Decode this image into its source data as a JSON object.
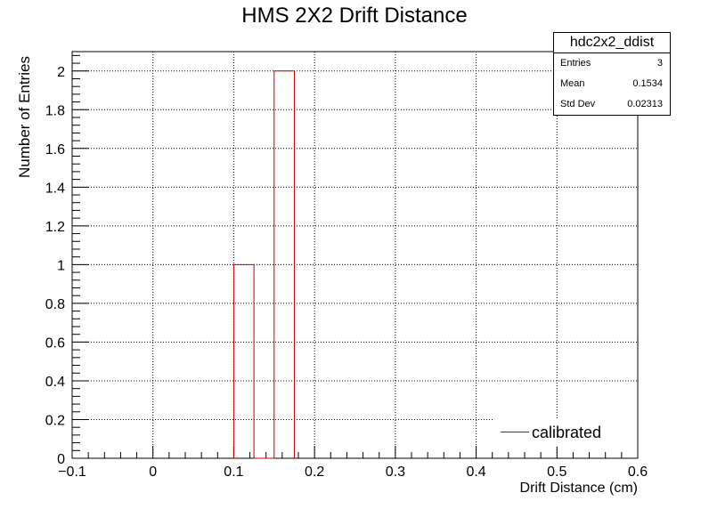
{
  "chart_data": {
    "type": "bar",
    "title": "HMS 2X2 Drift Distance",
    "xlabel": "Drift Distance (cm)",
    "ylabel": "Number of Entries",
    "xlim": [
      -0.1,
      0.6
    ],
    "ylim": [
      0,
      2.1
    ],
    "x_ticks": [
      "−0.1",
      "0",
      "0.1",
      "0.2",
      "0.3",
      "0.4",
      "0.5",
      "0.6"
    ],
    "y_ticks": [
      "0",
      "0.2",
      "0.4",
      "0.6",
      "0.8",
      "1",
      "1.2",
      "1.4",
      "1.6",
      "1.8",
      "2"
    ],
    "grid": true,
    "line_color": "#cc0000",
    "bins": [
      {
        "x_low": 0.1,
        "x_high": 0.125,
        "value": 1
      },
      {
        "x_low": 0.15,
        "x_high": 0.175,
        "value": 2
      }
    ],
    "series": [
      {
        "name": "calibrated"
      }
    ],
    "legend_position": "bottom-right"
  },
  "stats_box": {
    "name": "hdc2x2_ddist",
    "rows": [
      {
        "key": "Entries",
        "value": "3"
      },
      {
        "key": "Mean",
        "value": "0.1534"
      },
      {
        "key": "Std Dev",
        "value": "0.02313"
      }
    ]
  }
}
